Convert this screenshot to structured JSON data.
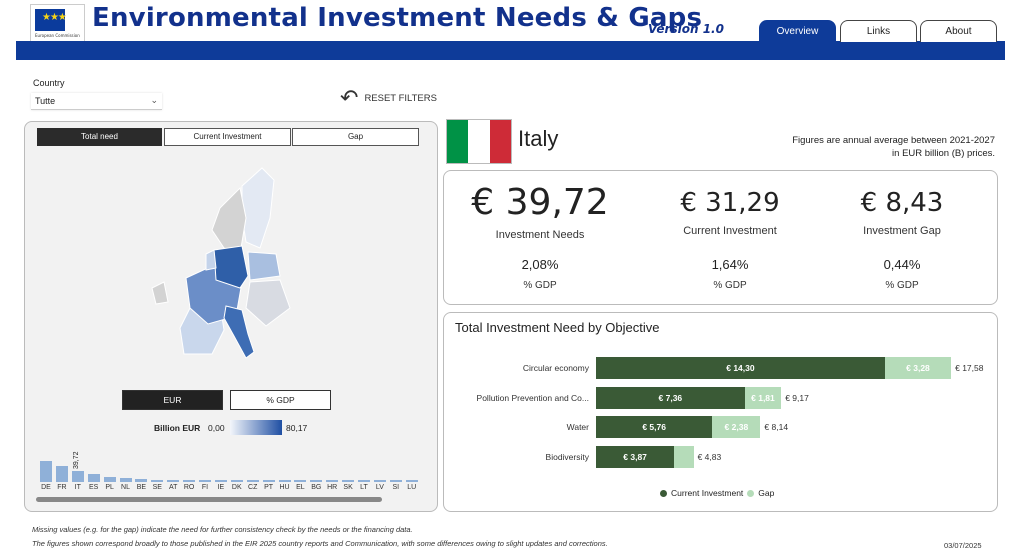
{
  "header": {
    "logo_text": "European Commission",
    "title": "Environmental Investment Needs & Gaps",
    "version": "Version 1.0",
    "tabs": [
      {
        "label": "Overview",
        "active": true
      },
      {
        "label": "Links",
        "active": false
      },
      {
        "label": "About",
        "active": false
      }
    ]
  },
  "filters": {
    "country_label": "Country",
    "country_value": "Tutte",
    "reset_label": "RESET FILTERS"
  },
  "map_panel": {
    "metric_tabs": [
      {
        "label": "Total need",
        "active": true
      },
      {
        "label": "Current Investment",
        "active": false
      },
      {
        "label": "Gap",
        "active": false
      }
    ],
    "unit_buttons": [
      {
        "label": "EUR",
        "active": true
      },
      {
        "label": "% GDP",
        "active": false
      }
    ],
    "legend_title": "Billion EUR",
    "legend_min": "0,00",
    "legend_max": "80,17",
    "bar_value_label": "39,72",
    "countries": [
      "DE",
      "FR",
      "IT",
      "ES",
      "PL",
      "NL",
      "BE",
      "SE",
      "AT",
      "RO",
      "FI",
      "IE",
      "DK",
      "CZ",
      "PT",
      "HU",
      "EL",
      "BG",
      "HR",
      "SK",
      "LT",
      "LV",
      "SI",
      "LU"
    ],
    "bar_values": [
      80.17,
      60,
      39.72,
      30,
      18,
      13,
      10,
      8,
      6.5,
      6,
      5,
      4.5,
      4,
      4,
      3.5,
      3,
      3,
      2.5,
      2.2,
      2,
      1.6,
      1.4,
      1.2,
      1
    ]
  },
  "country": {
    "name": "Italy",
    "flag_colors": [
      "#009246",
      "#ffffff",
      "#ce2b37"
    ],
    "note_line1": "Figures are annual average between 2021-2027",
    "note_line2": "in EUR billion (B) prices."
  },
  "kpis": {
    "needs_value": "€ 39,72",
    "needs_label": "Investment Needs",
    "needs_pct": "2,08%",
    "current_value": "€ 31,29",
    "current_label": "Current Investment",
    "current_pct": "1,64%",
    "gap_value": "€ 8,43",
    "gap_label": "Investment Gap",
    "gap_pct": "0,44%",
    "gdp_label": "% GDP"
  },
  "chart_data": {
    "type": "bar",
    "title": "Total Investment Need by Objective",
    "categories": [
      "Circular economy",
      "Pollution Prevention and Co...",
      "Water",
      "Biodiversity"
    ],
    "series": [
      {
        "name": "Current Investment",
        "values": [
          14.3,
          7.36,
          5.76,
          3.87
        ],
        "labels": [
          "€ 14,30",
          "€ 7,36",
          "€ 5,76",
          "€ 3,87"
        ],
        "color": "#3a5a36"
      },
      {
        "name": "Gap",
        "values": [
          3.28,
          1.81,
          2.38,
          0.96
        ],
        "labels": [
          "€ 3,28",
          "€ 1,81",
          "€ 2,38",
          ""
        ],
        "color": "#b5dcb9"
      }
    ],
    "totals": [
      "€ 17,58",
      "€ 9,17",
      "€ 8,14",
      "€ 4,83"
    ],
    "legend": "bottom-center",
    "orientation": "horizontal",
    "stacked": true
  },
  "footer": {
    "line1": "Missing values (e.g. for the gap) indicate the need for further consistency check by the needs or the financing data.",
    "line2": "The figures shown correspond broadly to those published in the EIR 2025 country reports and Communication, with some differences owing to slight updates and corrections.",
    "date": "03/07/2025"
  }
}
